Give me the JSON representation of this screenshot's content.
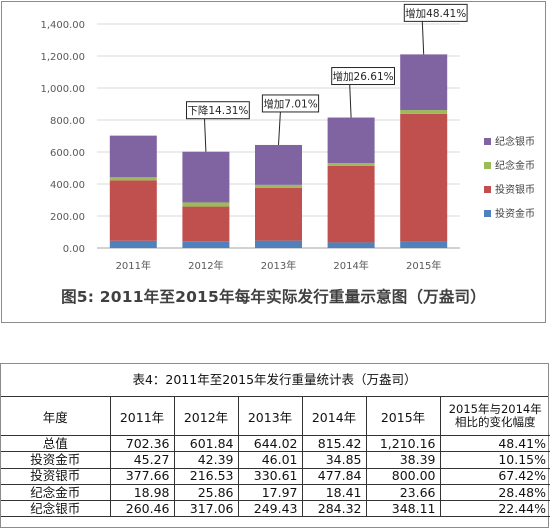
{
  "chart_data": {
    "type": "bar",
    "stacked": true,
    "caption": "图5: 2011年至2015年每年实际发行重量示意图（万盎司）",
    "categories": [
      "2011年",
      "2012年",
      "2013年",
      "2014年",
      "2015年"
    ],
    "ylim": [
      0,
      1400
    ],
    "yticks": [
      "0.00",
      "200.00",
      "400.00",
      "600.00",
      "800.00",
      "1,000.00",
      "1,200.00",
      "1,400.00"
    ],
    "grid": true,
    "legend_position": "right",
    "series": [
      {
        "name": "投资金币",
        "color": "#4f81bd",
        "values": [
          45.27,
          42.39,
          46.01,
          34.85,
          38.39
        ]
      },
      {
        "name": "投资银币",
        "color": "#c0504d",
        "values": [
          377.66,
          216.53,
          330.61,
          477.84,
          800.0
        ]
      },
      {
        "name": "纪念金币",
        "color": "#9bbb59",
        "values": [
          18.98,
          25.86,
          17.97,
          18.41,
          23.66
        ]
      },
      {
        "name": "纪念银币",
        "color": "#8064a2",
        "values": [
          260.46,
          317.06,
          249.43,
          284.32,
          348.11
        ]
      }
    ],
    "legend_order": [
      "纪念银币",
      "纪念金币",
      "投资银币",
      "投资金币"
    ],
    "annotations": [
      {
        "category": "2012年",
        "text": "下降14.31%"
      },
      {
        "category": "2013年",
        "text": "增加7.01%"
      },
      {
        "category": "2014年",
        "text": "增加26.61%"
      },
      {
        "category": "2015年",
        "text": "增加48.41%"
      }
    ]
  },
  "table": {
    "title": "表4：2011年至2015年发行重量统计表（万盎司）",
    "headers": [
      "年度",
      "2011年",
      "2012年",
      "2013年",
      "2014年",
      "2015年",
      "2015年与2014年相比的变化幅度"
    ],
    "rows": [
      [
        "总值",
        "702.36",
        "601.84",
        "644.02",
        "815.42",
        "1,210.16",
        "48.41%"
      ],
      [
        "投资金币",
        "45.27",
        "42.39",
        "46.01",
        "34.85",
        "38.39",
        "10.15%"
      ],
      [
        "投资银币",
        "377.66",
        "216.53",
        "330.61",
        "477.84",
        "800.00",
        "67.42%"
      ],
      [
        "纪念金币",
        "18.98",
        "25.86",
        "17.97",
        "18.41",
        "23.66",
        "28.48%"
      ],
      [
        "纪念银币",
        "260.46",
        "317.06",
        "249.43",
        "284.32",
        "348.11",
        "22.44%"
      ]
    ]
  }
}
